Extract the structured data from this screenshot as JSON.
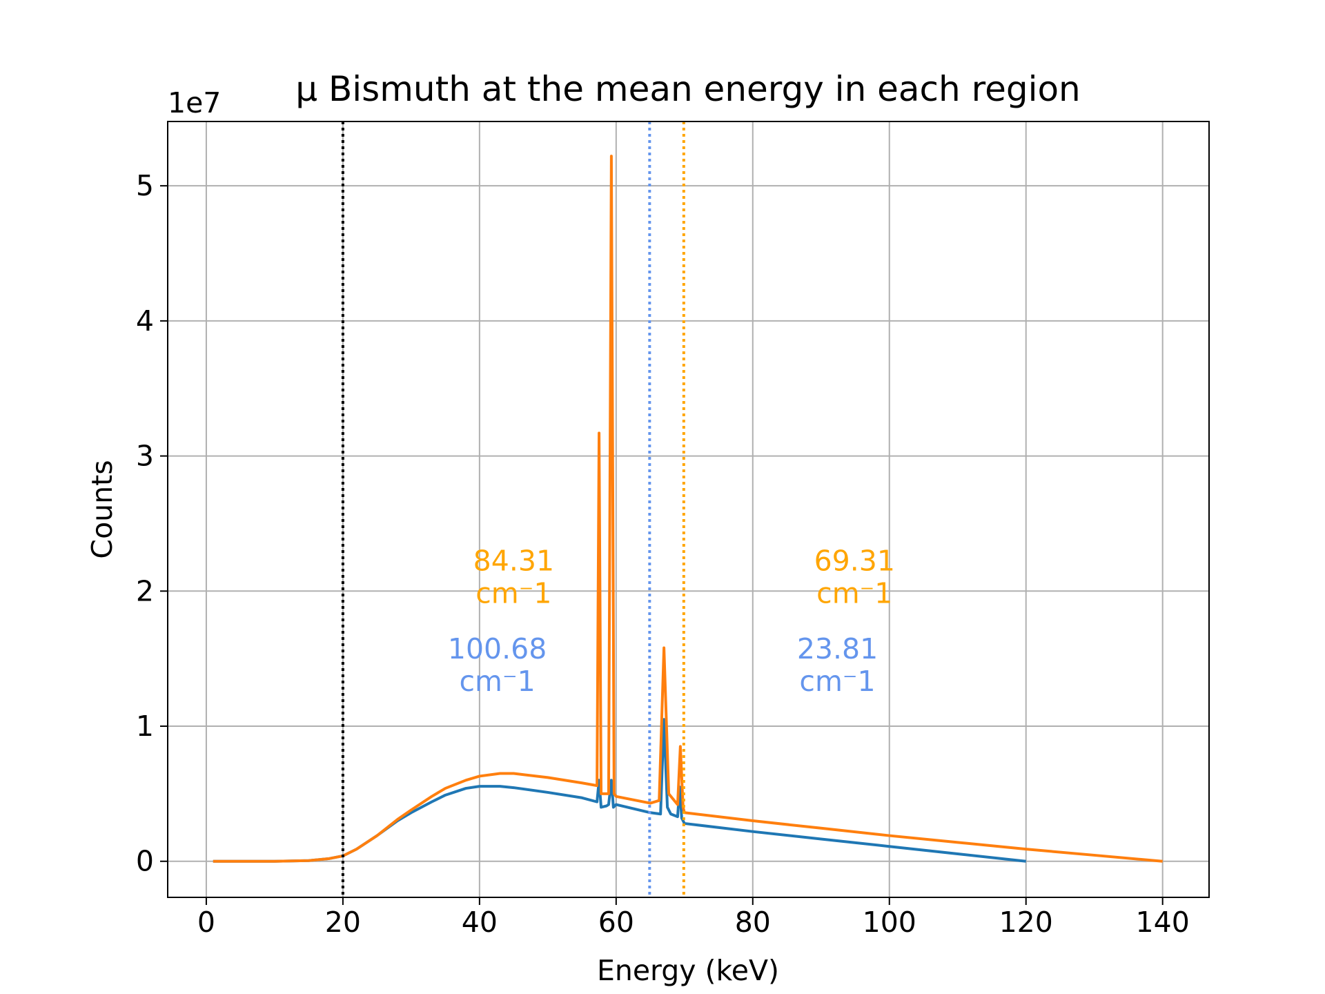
{
  "chart_data": {
    "type": "line",
    "title": "μ Bismuth at the mean energy in each region",
    "xlabel": "Energy (keV)",
    "ylabel": "Counts",
    "y_offset_label": "1e7",
    "xlim": [
      -5.65,
      146.8
    ],
    "ylim": [
      -0.267,
      5.476
    ],
    "xticks": [
      0,
      20,
      40,
      60,
      80,
      100,
      120,
      140
    ],
    "yticks": [
      0,
      1,
      2,
      3,
      4,
      5
    ],
    "grid": true,
    "series": [
      {
        "color": "#1f77b4",
        "x": [
          1,
          10,
          15,
          18,
          20,
          22,
          25,
          28,
          30,
          33,
          35,
          38,
          40,
          43,
          45,
          50,
          55,
          57.2,
          57.5,
          57.8,
          58.6,
          58.9,
          59.3,
          59.6,
          60,
          65,
          66.5,
          67,
          67.5,
          68,
          69,
          69.3,
          69.6,
          70,
          80,
          90,
          100,
          110,
          120
        ],
        "values": [
          0,
          0,
          0.005,
          0.02,
          0.04,
          0.09,
          0.19,
          0.3,
          0.36,
          0.44,
          0.49,
          0.54,
          0.555,
          0.555,
          0.545,
          0.51,
          0.47,
          0.44,
          0.6,
          0.4,
          0.41,
          0.42,
          0.6,
          0.4,
          0.42,
          0.36,
          0.35,
          1.05,
          0.4,
          0.35,
          0.33,
          0.55,
          0.32,
          0.28,
          0.22,
          0.165,
          0.11,
          0.055,
          0
        ]
      },
      {
        "color": "#ff7f0e",
        "x": [
          1,
          10,
          15,
          18,
          20,
          22,
          25,
          28,
          30,
          33,
          35,
          38,
          40,
          43,
          45,
          50,
          55,
          57.2,
          57.5,
          57.8,
          58.9,
          59.3,
          59.7,
          60,
          65,
          66.3,
          67,
          67.7,
          68.5,
          69,
          69.4,
          69.8,
          70,
          80,
          90,
          100,
          110,
          120,
          130,
          140
        ],
        "values": [
          0,
          0,
          0.005,
          0.02,
          0.04,
          0.09,
          0.19,
          0.31,
          0.38,
          0.48,
          0.54,
          0.6,
          0.63,
          0.65,
          0.65,
          0.62,
          0.58,
          0.56,
          3.17,
          0.5,
          0.5,
          5.22,
          0.5,
          0.48,
          0.43,
          0.45,
          1.58,
          0.5,
          0.45,
          0.42,
          0.85,
          0.4,
          0.36,
          0.3,
          0.245,
          0.19,
          0.14,
          0.09,
          0.045,
          0
        ]
      }
    ],
    "vlines": [
      {
        "x": 20,
        "color": "#000000"
      },
      {
        "x": 64.9,
        "color": "#6495ed"
      },
      {
        "x": 69.9,
        "color": "#ffa500"
      }
    ],
    "annotations": [
      {
        "lines": [
          "84.31",
          "cm⁻1"
        ],
        "color": "#ffa500"
      },
      {
        "lines": [
          "100.68",
          "cm⁻1"
        ],
        "color": "#6495ed"
      },
      {
        "lines": [
          "69.31",
          "cm⁻1"
        ],
        "color": "#ffa500"
      },
      {
        "lines": [
          "23.81",
          "cm⁻1"
        ],
        "color": "#6495ed"
      }
    ]
  }
}
